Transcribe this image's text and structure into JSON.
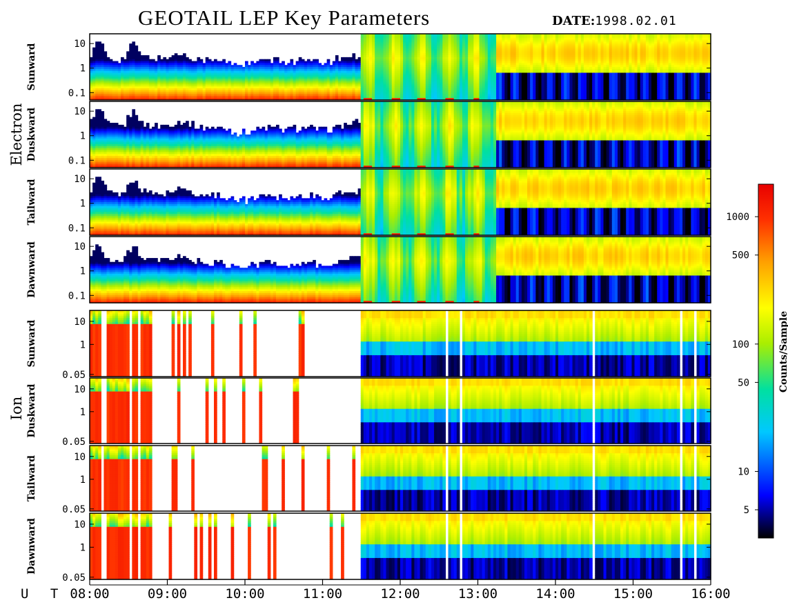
{
  "header": {
    "title": "GEOTAIL LEP Key Parameters",
    "date_label": "DATE:",
    "date_value": "1998.02.01"
  },
  "x_axis": {
    "prefix": "U T",
    "tick_labels": [
      "08:00",
      "09:00",
      "10:00",
      "11:00",
      "12:00",
      "13:00",
      "14:00",
      "15:00",
      "16:00"
    ]
  },
  "groups": [
    {
      "name": "Electron",
      "panels": [
        "Sunward",
        "Duskward",
        "Tailward",
        "Dawnward"
      ]
    },
    {
      "name": "Ion",
      "panels": [
        "Sunward",
        "Duskward",
        "Tailward",
        "Dawnward"
      ]
    }
  ],
  "colorbar": {
    "label": "Counts/Sample",
    "scale": "log",
    "range": [
      3,
      1800
    ],
    "tick_labels": [
      "1000",
      "500",
      "100",
      "50",
      "10",
      "5"
    ],
    "colors": [
      "#000000",
      "#0000ff",
      "#00c8ff",
      "#00e0a0",
      "#aaee00",
      "#ffff00",
      "#ffa000",
      "#ff3000",
      "#e80000"
    ]
  },
  "chart_data": {
    "type": "heatmap",
    "title": "GEOTAIL LEP Key Parameters",
    "xlabel": "U T",
    "x_range": [
      "08:00",
      "16:00"
    ],
    "y_scale": "log",
    "electron_panels": {
      "y_range": [
        0.05,
        25
      ],
      "y_tick_labels": [
        "10",
        "1",
        "0.1"
      ],
      "series": [
        {
          "name": "Sunward",
          "values": []
        },
        {
          "name": "Duskward",
          "values": []
        },
        {
          "name": "Tailward",
          "values": []
        },
        {
          "name": "Dawnward",
          "values": []
        }
      ],
      "regimes": [
        {
          "time": [
            "08:00",
            "11:30"
          ],
          "description": "intense low-energy counts (>1000) below ~0.3, falling off to background above ~2"
        },
        {
          "time": [
            "11:30",
            "13:15"
          ],
          "description": "broad moderate counts (~100-300) across 0.1-20 with intermittent bursts"
        },
        {
          "time": [
            "13:15",
            "16:00"
          ],
          "description": "moderate counts (~100-300) from ~1 to 20, low counts (~5-10) below ~0.5"
        }
      ]
    },
    "ion_panels": {
      "y_range": [
        0.04,
        30
      ],
      "y_tick_labels": [
        "10",
        "1",
        "0.05"
      ],
      "series": [
        {
          "name": "Sunward",
          "values": []
        },
        {
          "name": "Duskward",
          "values": []
        },
        {
          "name": "Tailward",
          "values": []
        },
        {
          "name": "Dawnward",
          "values": []
        }
      ],
      "regimes": [
        {
          "time": [
            "08:00",
            "11:30"
          ],
          "description": "sparse data with many gaps; high counts (>1000) at low energies where present"
        },
        {
          "time": [
            "11:30",
            "16:00"
          ],
          "description": "yellow band (~300) near 10-20, green (~100) from 1-10, dark blue (~5-10) near 0.05-0.3, periodic data gaps"
        }
      ]
    }
  }
}
